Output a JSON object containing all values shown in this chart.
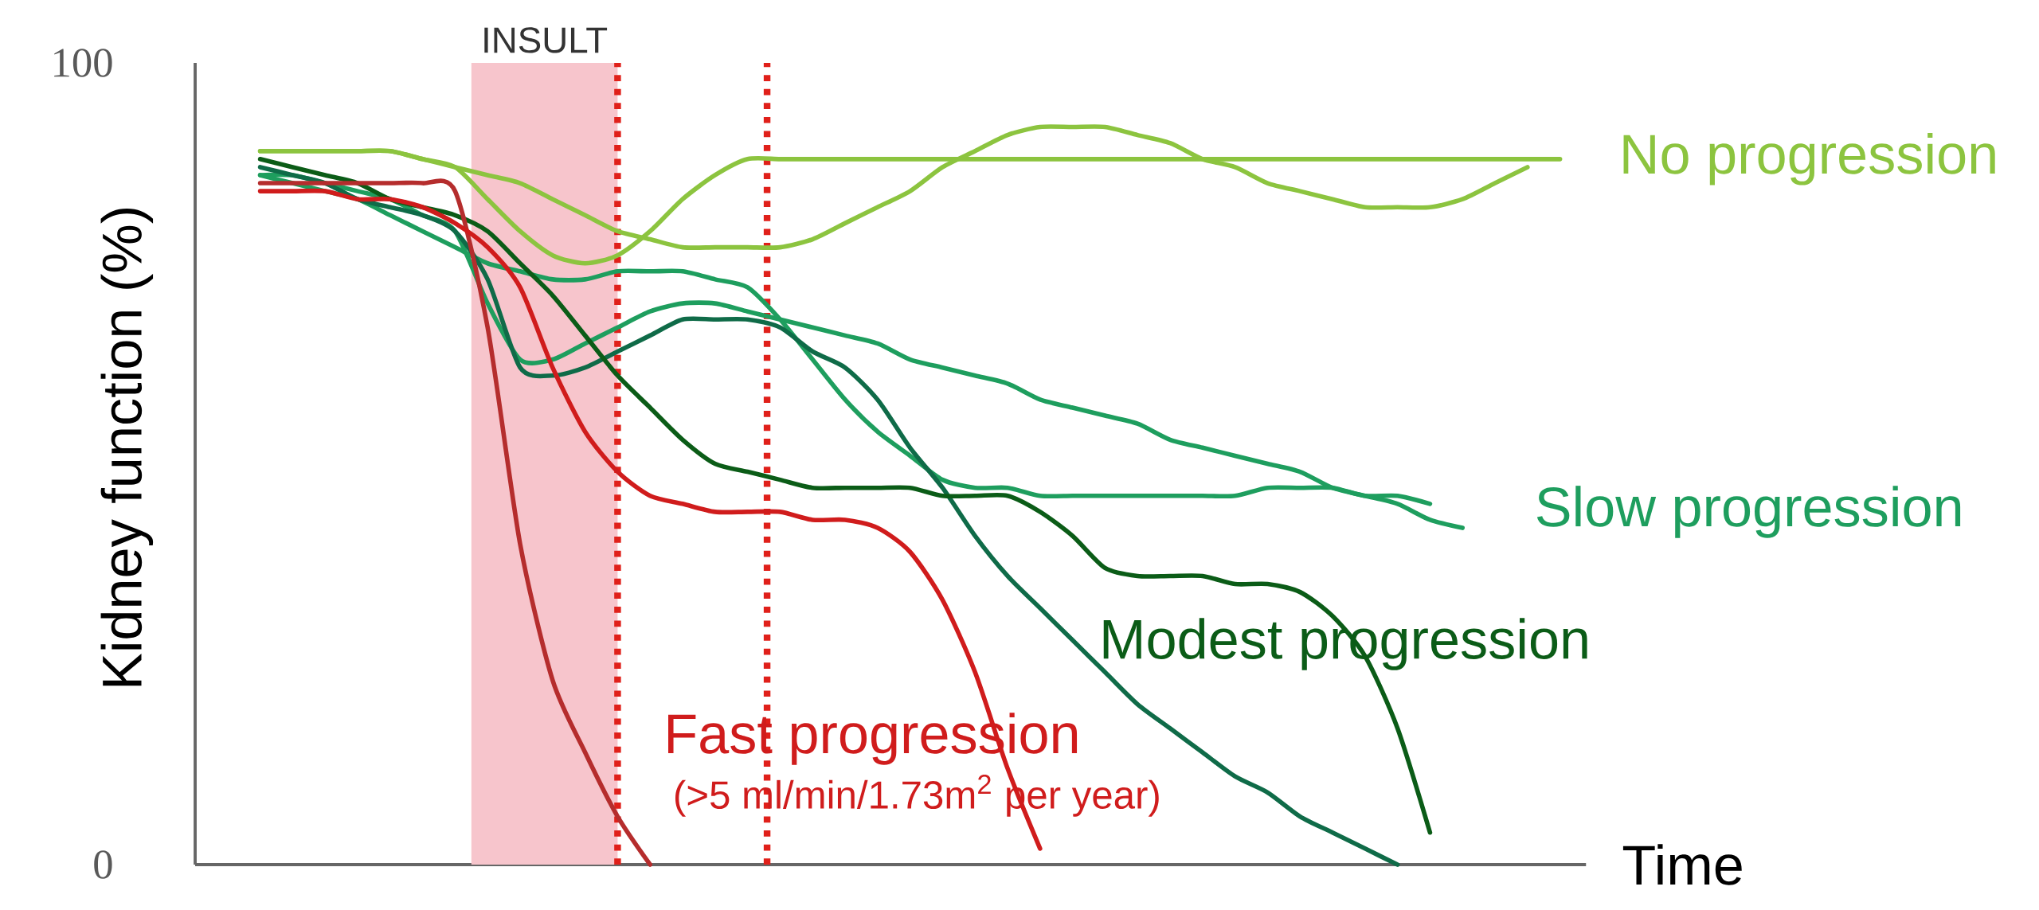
{
  "chart_data": {
    "type": "line",
    "xlabel": "Time",
    "ylabel": "Kidney function (%)",
    "categories": [
      null,
      null,
      null,
      null,
      null,
      null,
      null,
      null,
      null,
      null,
      null,
      null,
      null,
      null,
      null,
      null,
      null,
      null,
      null,
      null,
      null,
      null,
      null,
      null,
      null,
      null,
      null,
      null,
      null,
      null,
      null,
      null,
      null,
      null,
      null,
      null,
      null,
      null,
      null,
      null,
      null,
      null,
      null
    ],
    "ylim": [
      0,
      100
    ],
    "yticks": [
      0,
      100
    ],
    "tick_labels": "y",
    "series": [
      {
        "name": "No progression",
        "color": "#8cc43f",
        "values": [
          null,
          null,
          89,
          89,
          89,
          89,
          89,
          88,
          87,
          83,
          79,
          76,
          75,
          76,
          79,
          83,
          86,
          88,
          88,
          88,
          88,
          88,
          88,
          88,
          88,
          88,
          88,
          88,
          88,
          88,
          88,
          88,
          88,
          88,
          88,
          88,
          88,
          88,
          88,
          88,
          88,
          88,
          88
        ]
      },
      {
        "color": "#8cc43f",
        "values": [
          null,
          null,
          89,
          89,
          89,
          89,
          89,
          88,
          87,
          86,
          85,
          83,
          81,
          79,
          78,
          77,
          77,
          77,
          77,
          78,
          80,
          82,
          84,
          87,
          89,
          91,
          92,
          92,
          92,
          91,
          90,
          88,
          87,
          85,
          84,
          83,
          82,
          82,
          82,
          83,
          85,
          87,
          null
        ]
      },
      {
        "name": "Slow progression",
        "color": "#1e9e5e",
        "values": [
          null,
          null,
          86,
          86,
          85,
          84,
          83,
          81,
          79,
          70,
          63,
          63,
          65,
          67,
          69,
          70,
          70,
          69,
          68,
          67,
          66,
          65,
          63,
          62,
          61,
          60,
          58,
          57,
          56,
          55,
          53,
          52,
          51,
          50,
          49,
          47,
          46,
          45,
          43,
          42,
          null,
          null,
          null
        ]
      },
      {
        "color": "#1e9e5e",
        "values": [
          null,
          null,
          86,
          85,
          84,
          83,
          81,
          79,
          77,
          75,
          74,
          73,
          73,
          74,
          74,
          74,
          73,
          72,
          68,
          63,
          58,
          54,
          51,
          48,
          47,
          47,
          46,
          46,
          46,
          46,
          46,
          46,
          46,
          47,
          47,
          47,
          46,
          46,
          45,
          null,
          null,
          null,
          null
        ]
      },
      {
        "color": "#0f6b48",
        "values": [
          null,
          null,
          87,
          86,
          85,
          83,
          82,
          81,
          79,
          73,
          62,
          61,
          62,
          64,
          66,
          68,
          68,
          68,
          67,
          64,
          62,
          58,
          52,
          47,
          41,
          36,
          32,
          28,
          24,
          20,
          17,
          14,
          11,
          9,
          6,
          4,
          2,
          0,
          null,
          null,
          null,
          null,
          null
        ]
      },
      {
        "name": "Modest progression",
        "color": "#0b5c17",
        "values": [
          null,
          null,
          88,
          87,
          86,
          85,
          83,
          82,
          81,
          79,
          75,
          71,
          66,
          61,
          57,
          53,
          50,
          49,
          48,
          47,
          47,
          47,
          47,
          46,
          46,
          46,
          44,
          41,
          37,
          36,
          36,
          36,
          35,
          35,
          34,
          31,
          26,
          17,
          4,
          null,
          null,
          null,
          null
        ]
      },
      {
        "color": "#b52d2d",
        "values": [
          null,
          null,
          85,
          85,
          85,
          85,
          85,
          85,
          84,
          67,
          40,
          23,
          14,
          6,
          0,
          null,
          null,
          null,
          null,
          null,
          null,
          null,
          null,
          null,
          null,
          null,
          null,
          null,
          null,
          null,
          null,
          null,
          null,
          null,
          null,
          null,
          null,
          null,
          null,
          null,
          null,
          null,
          null
        ]
      },
      {
        "name": "Fast progression",
        "color": "#d01c1c",
        "values": [
          null,
          null,
          84,
          84,
          84,
          83,
          83,
          82,
          80,
          77,
          72,
          62,
          54,
          49,
          46,
          45,
          44,
          44,
          44,
          43,
          43,
          42,
          39,
          33,
          24,
          12,
          2,
          null,
          null,
          null,
          null,
          null,
          null,
          null,
          null,
          null,
          null,
          null,
          null,
          null,
          null,
          null,
          null
        ]
      }
    ],
    "annotations": [
      "INSULT",
      "(>5 ml/min/1.73m$^{2}$ per year)"
    ]
  }
}
